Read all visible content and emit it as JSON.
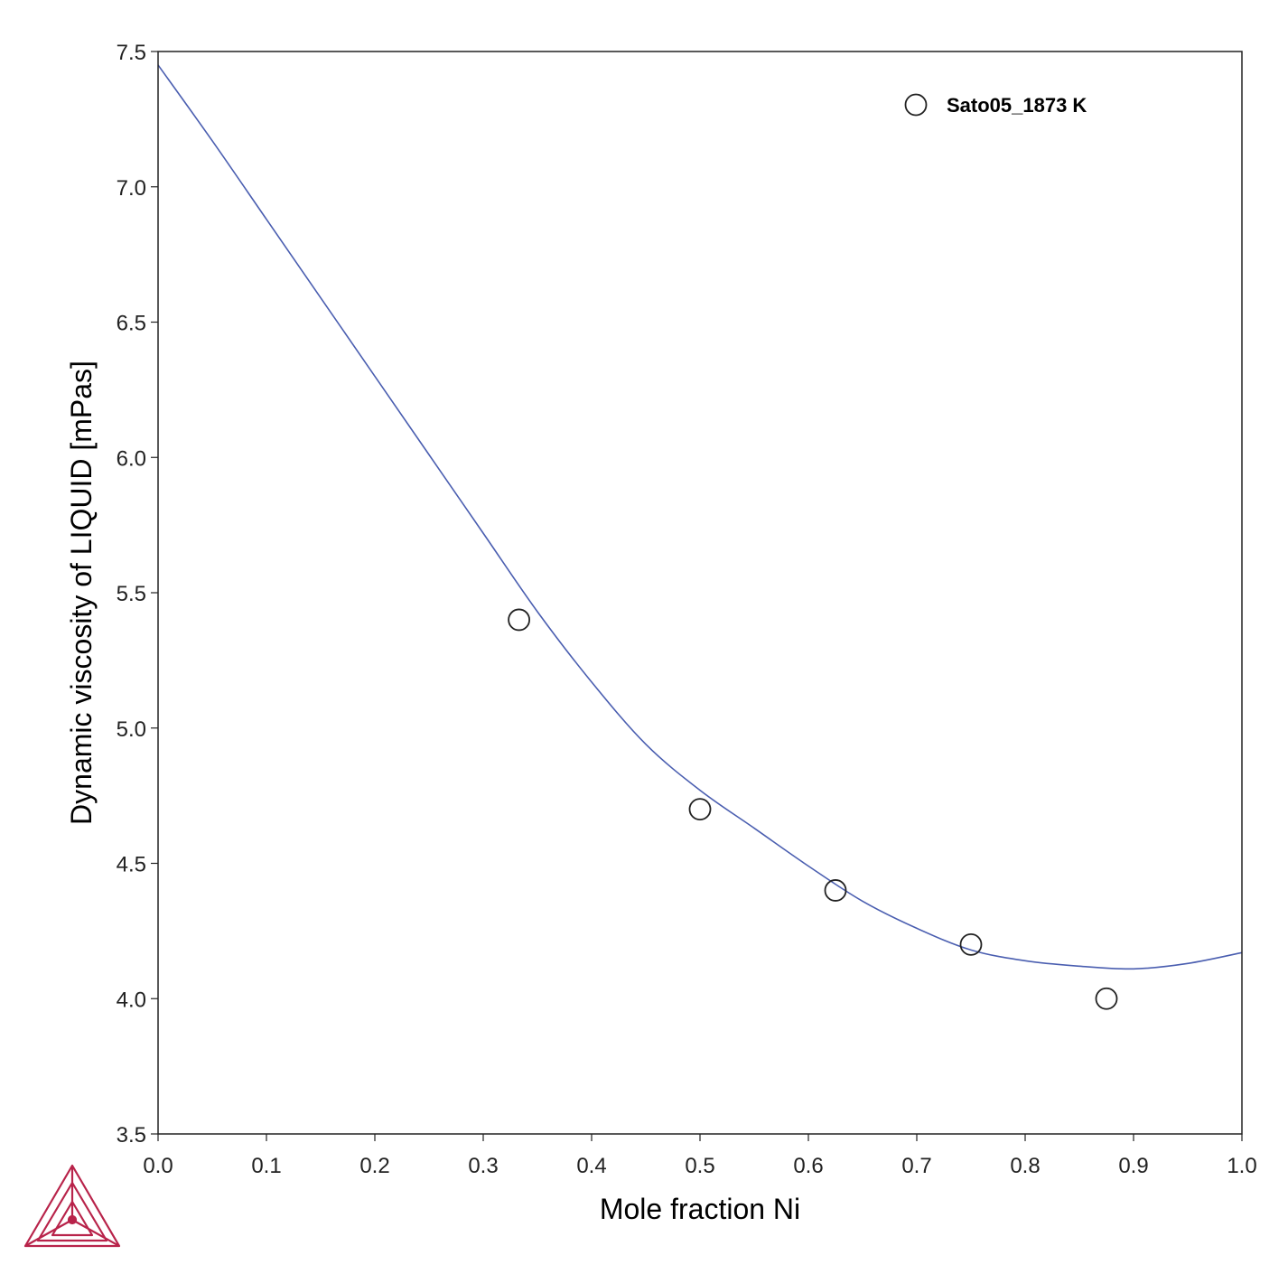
{
  "chart_data": {
    "type": "line",
    "xlabel": "Mole fraction Ni",
    "ylabel": "Dynamic viscosity of LIQUID [mPas]",
    "xlim": [
      0.0,
      1.0
    ],
    "ylim": [
      3.5,
      7.5
    ],
    "x_ticks": [
      "0.0",
      "0.1",
      "0.2",
      "0.3",
      "0.4",
      "0.5",
      "0.6",
      "0.7",
      "0.8",
      "0.9",
      "1.0"
    ],
    "y_ticks": [
      "3.5",
      "4.0",
      "4.5",
      "5.0",
      "5.5",
      "6.0",
      "6.5",
      "7.0",
      "7.5"
    ],
    "grid": false,
    "legend_position": "top-right",
    "series": [
      {
        "kind": "line",
        "color": "#4a5eb0",
        "x": [
          0.0,
          0.05,
          0.1,
          0.15,
          0.2,
          0.25,
          0.3,
          0.35,
          0.4,
          0.45,
          0.5,
          0.55,
          0.6,
          0.65,
          0.7,
          0.75,
          0.8,
          0.85,
          0.9,
          0.95,
          1.0
        ],
        "y": [
          7.45,
          7.17,
          6.88,
          6.59,
          6.3,
          6.01,
          5.72,
          5.43,
          5.17,
          4.94,
          4.77,
          4.63,
          4.49,
          4.36,
          4.26,
          4.18,
          4.14,
          4.12,
          4.11,
          4.13,
          4.17
        ]
      },
      {
        "kind": "scatter",
        "name": "Sato05_1873 K",
        "marker": "open-circle",
        "color": "#222222",
        "x": [
          0.333,
          0.5,
          0.625,
          0.75,
          0.875
        ],
        "y": [
          5.4,
          4.7,
          4.4,
          4.2,
          4.0
        ]
      }
    ]
  },
  "logo": {
    "icon": "thermo-calc-logo-icon",
    "color": "#b8234a"
  }
}
